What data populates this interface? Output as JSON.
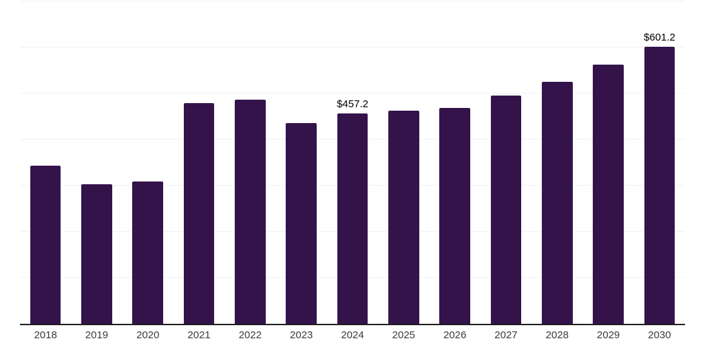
{
  "chart_data": {
    "type": "bar",
    "title": "",
    "xlabel": "",
    "ylabel": "",
    "categories": [
      "2018",
      "2019",
      "2020",
      "2021",
      "2022",
      "2023",
      "2024",
      "2025",
      "2026",
      "2027",
      "2028",
      "2029",
      "2030"
    ],
    "values": [
      343,
      303,
      309,
      479,
      486,
      436,
      457.2,
      462,
      469,
      496,
      525,
      562,
      601.2
    ],
    "bar_labels": [
      "",
      "",
      "",
      "",
      "",
      "",
      "$457.2",
      "",
      "",
      "",
      "",
      "",
      "$601.2"
    ],
    "ylim": [
      0,
      700
    ],
    "grid_step": 100,
    "grid_on": true,
    "legend": "none",
    "colors": {
      "bar": "#34134a",
      "gridline": "#f1f1f1",
      "axis_line": "#1f1f1f",
      "tick_text": "#3a3a3a",
      "value_label_text": "#000000",
      "background": "#ffffff"
    }
  }
}
